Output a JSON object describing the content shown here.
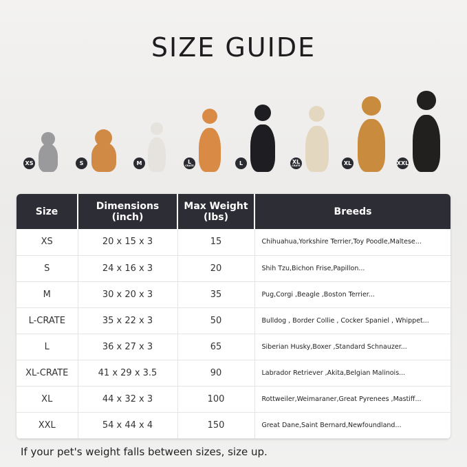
{
  "title": "SIZE GUIDE",
  "pets": [
    {
      "badge": "XS",
      "sub": "",
      "animal": "cat",
      "color": "#9a9a9c"
    },
    {
      "badge": "S",
      "sub": "",
      "animal": "pomeranian",
      "color": "#d08a45"
    },
    {
      "badge": "M",
      "sub": "",
      "animal": "french-bulldog",
      "color": "#e6e3df"
    },
    {
      "badge": "L",
      "sub": "CRATE",
      "animal": "shiba-inu",
      "color": "#d98a45"
    },
    {
      "badge": "L",
      "sub": "",
      "animal": "border-collie",
      "color": "#1e1e22"
    },
    {
      "badge": "XL",
      "sub": "CRATE",
      "animal": "labrador",
      "color": "#e3d7c0"
    },
    {
      "badge": "XL",
      "sub": "",
      "animal": "golden-retriever",
      "color": "#c98b3e"
    },
    {
      "badge": "XXL",
      "sub": "",
      "animal": "doberman",
      "color": "#22201f"
    }
  ],
  "table": {
    "headers": [
      "Size",
      "Dimensions\n(inch)",
      "Max Weight\n(lbs)",
      "Breeds"
    ],
    "rows": [
      [
        "XS",
        "20 x 15 x 3",
        "15",
        "Chihuahua,Yorkshire Terrier,Toy Poodle,Maltese..."
      ],
      [
        "S",
        "24 x 16 x 3",
        "20",
        "Shih Tzu,Bichon Frise,Papillon..."
      ],
      [
        "M",
        "30 x 20 x 3",
        "35",
        "Pug,Corgi ,Beagle ,Boston Terrier..."
      ],
      [
        "L-CRATE",
        "35 x 22 x 3",
        "50",
        "Bulldog , Border Collie , Cocker Spaniel , Whippet..."
      ],
      [
        "L",
        "36 x 27 x 3",
        "65",
        "Siberian Husky,Boxer ,Standard Schnauzer..."
      ],
      [
        "XL-CRATE",
        "41 x 29 x 3.5",
        "90",
        "Labrador Retriever ,Akita,Belgian Malinois..."
      ],
      [
        "XL",
        "44 x 32 x 3",
        "100",
        "Rottweiler,Weimaraner,Great Pyrenees ,Mastiff..."
      ],
      [
        "XXL",
        "54 x 44 x 4",
        "150",
        "Great Dane,Saint Bernard,Newfoundland..."
      ]
    ]
  },
  "note": "If your pet's weight falls between sizes, size up."
}
